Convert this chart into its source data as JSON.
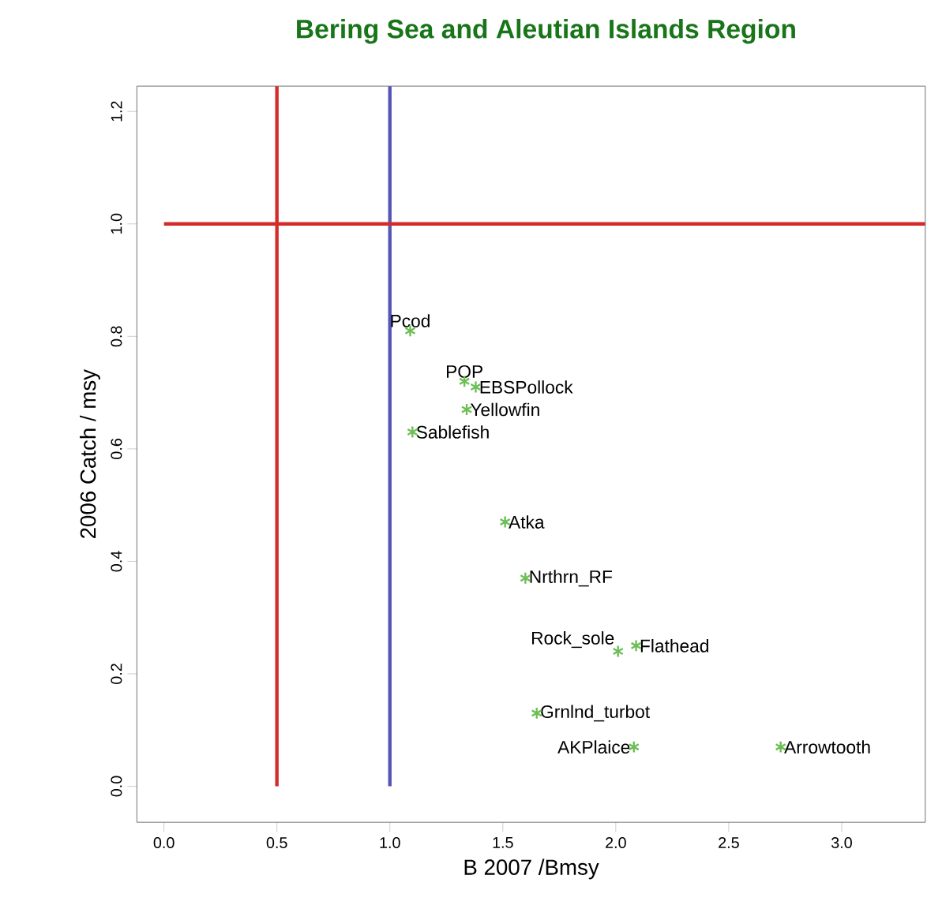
{
  "chart_data": {
    "type": "scatter",
    "title": "Bering Sea and Aleutian Islands Region",
    "xlabel": "B 2007 /Bmsy",
    "ylabel": "2006 Catch / msy",
    "xlim": [
      -0.12,
      3.37
    ],
    "ylim": [
      -0.064,
      1.245
    ],
    "xticks": [
      {
        "value": 0,
        "label": "0.0"
      },
      0.5,
      {
        "value": 1,
        "label": "1.0"
      },
      1.5,
      {
        "value": 2,
        "label": "2.0"
      },
      2.5,
      {
        "value": 3,
        "label": "3.0"
      }
    ],
    "yticks": [
      {
        "value": 0,
        "label": "0.0"
      },
      0.2,
      0.4,
      0.6,
      0.8,
      {
        "value": 1,
        "label": "1.0"
      },
      1.2
    ],
    "marker": "cross",
    "grid": false,
    "legend": false,
    "ref_lines": [
      {
        "axis": "x",
        "value": 0.5,
        "color": "#d42a2a"
      },
      {
        "axis": "x",
        "value": 1.0,
        "color": "#5555b8"
      },
      {
        "axis": "y",
        "value": 1.0,
        "color": "#d42a2a"
      }
    ],
    "series": [
      {
        "name": "Pcod",
        "color": "#6cbf55",
        "x": [
          1.09
        ],
        "values": [
          0.81
        ]
      },
      {
        "name": "POP",
        "color": "#6cbf55",
        "x": [
          1.33
        ],
        "values": [
          0.72
        ]
      },
      {
        "name": "EBSPollock",
        "color": "#6cbf55",
        "x": [
          1.38
        ],
        "values": [
          0.71
        ]
      },
      {
        "name": "Yellowfin",
        "color": "#6cbf55",
        "x": [
          1.34
        ],
        "values": [
          0.67
        ]
      },
      {
        "name": "Sablefish",
        "color": "#6cbf55",
        "x": [
          1.1
        ],
        "values": [
          0.63
        ]
      },
      {
        "name": "Atka",
        "color": "#6cbf55",
        "x": [
          1.51
        ],
        "values": [
          0.47
        ]
      },
      {
        "name": "Nrthrn_RF",
        "color": "#6cbf55",
        "x": [
          1.6
        ],
        "values": [
          0.37
        ]
      },
      {
        "name": "Rock_sole",
        "color": "#6cbf55",
        "x": [
          2.01
        ],
        "values": [
          0.24
        ]
      },
      {
        "name": "Flathead",
        "color": "#6cbf55",
        "x": [
          2.09
        ],
        "values": [
          0.25
        ]
      },
      {
        "name": "Grnlnd_turbot",
        "color": "#6cbf55",
        "x": [
          1.65
        ],
        "values": [
          0.13
        ]
      },
      {
        "name": "AKPlaice",
        "color": "#6cbf55",
        "x": [
          2.08
        ],
        "values": [
          0.07
        ]
      },
      {
        "name": "Arrowtooth",
        "color": "#6cbf55",
        "x": [
          2.73
        ],
        "values": [
          0.07
        ]
      }
    ]
  }
}
